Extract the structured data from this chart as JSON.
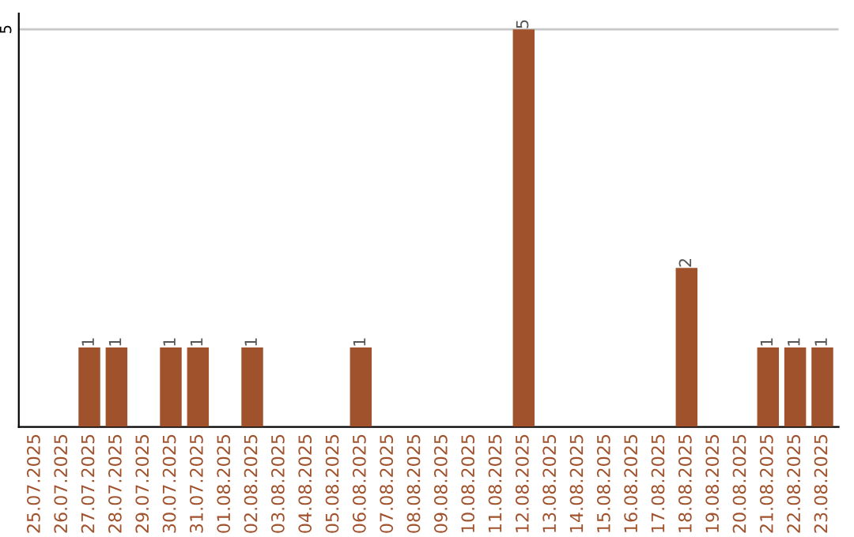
{
  "chart_data": {
    "type": "bar",
    "categories": [
      "25.07.2025",
      "26.07.2025",
      "27.07.2025",
      "28.07.2025",
      "29.07.2025",
      "30.07.2025",
      "31.07.2025",
      "01.08.2025",
      "02.08.2025",
      "03.08.2025",
      "04.08.2025",
      "05.08.2025",
      "06.08.2025",
      "07.08.2025",
      "08.08.2025",
      "09.08.2025",
      "10.08.2025",
      "11.08.2025",
      "12.08.2025",
      "13.08.2025",
      "14.08.2025",
      "15.08.2025",
      "16.08.2025",
      "17.08.2025",
      "18.08.2025",
      "19.08.2025",
      "20.08.2025",
      "21.08.2025",
      "22.08.2025",
      "23.08.2025"
    ],
    "values": [
      0,
      0,
      1,
      1,
      0,
      1,
      1,
      0,
      1,
      0,
      0,
      0,
      1,
      0,
      0,
      0,
      0,
      0,
      5,
      0,
      0,
      0,
      0,
      0,
      2,
      0,
      0,
      1,
      1,
      1
    ],
    "value_labels": [
      null,
      null,
      "1",
      "1",
      null,
      "1",
      "1",
      null,
      "1",
      null,
      null,
      null,
      "1",
      null,
      null,
      null,
      null,
      null,
      "5",
      null,
      null,
      null,
      null,
      null,
      "2",
      null,
      null,
      "1",
      "1",
      "1"
    ],
    "color": "#a0522d",
    "ylim": [
      0,
      5.2
    ],
    "yticks": [
      5
    ],
    "grid": "y"
  }
}
